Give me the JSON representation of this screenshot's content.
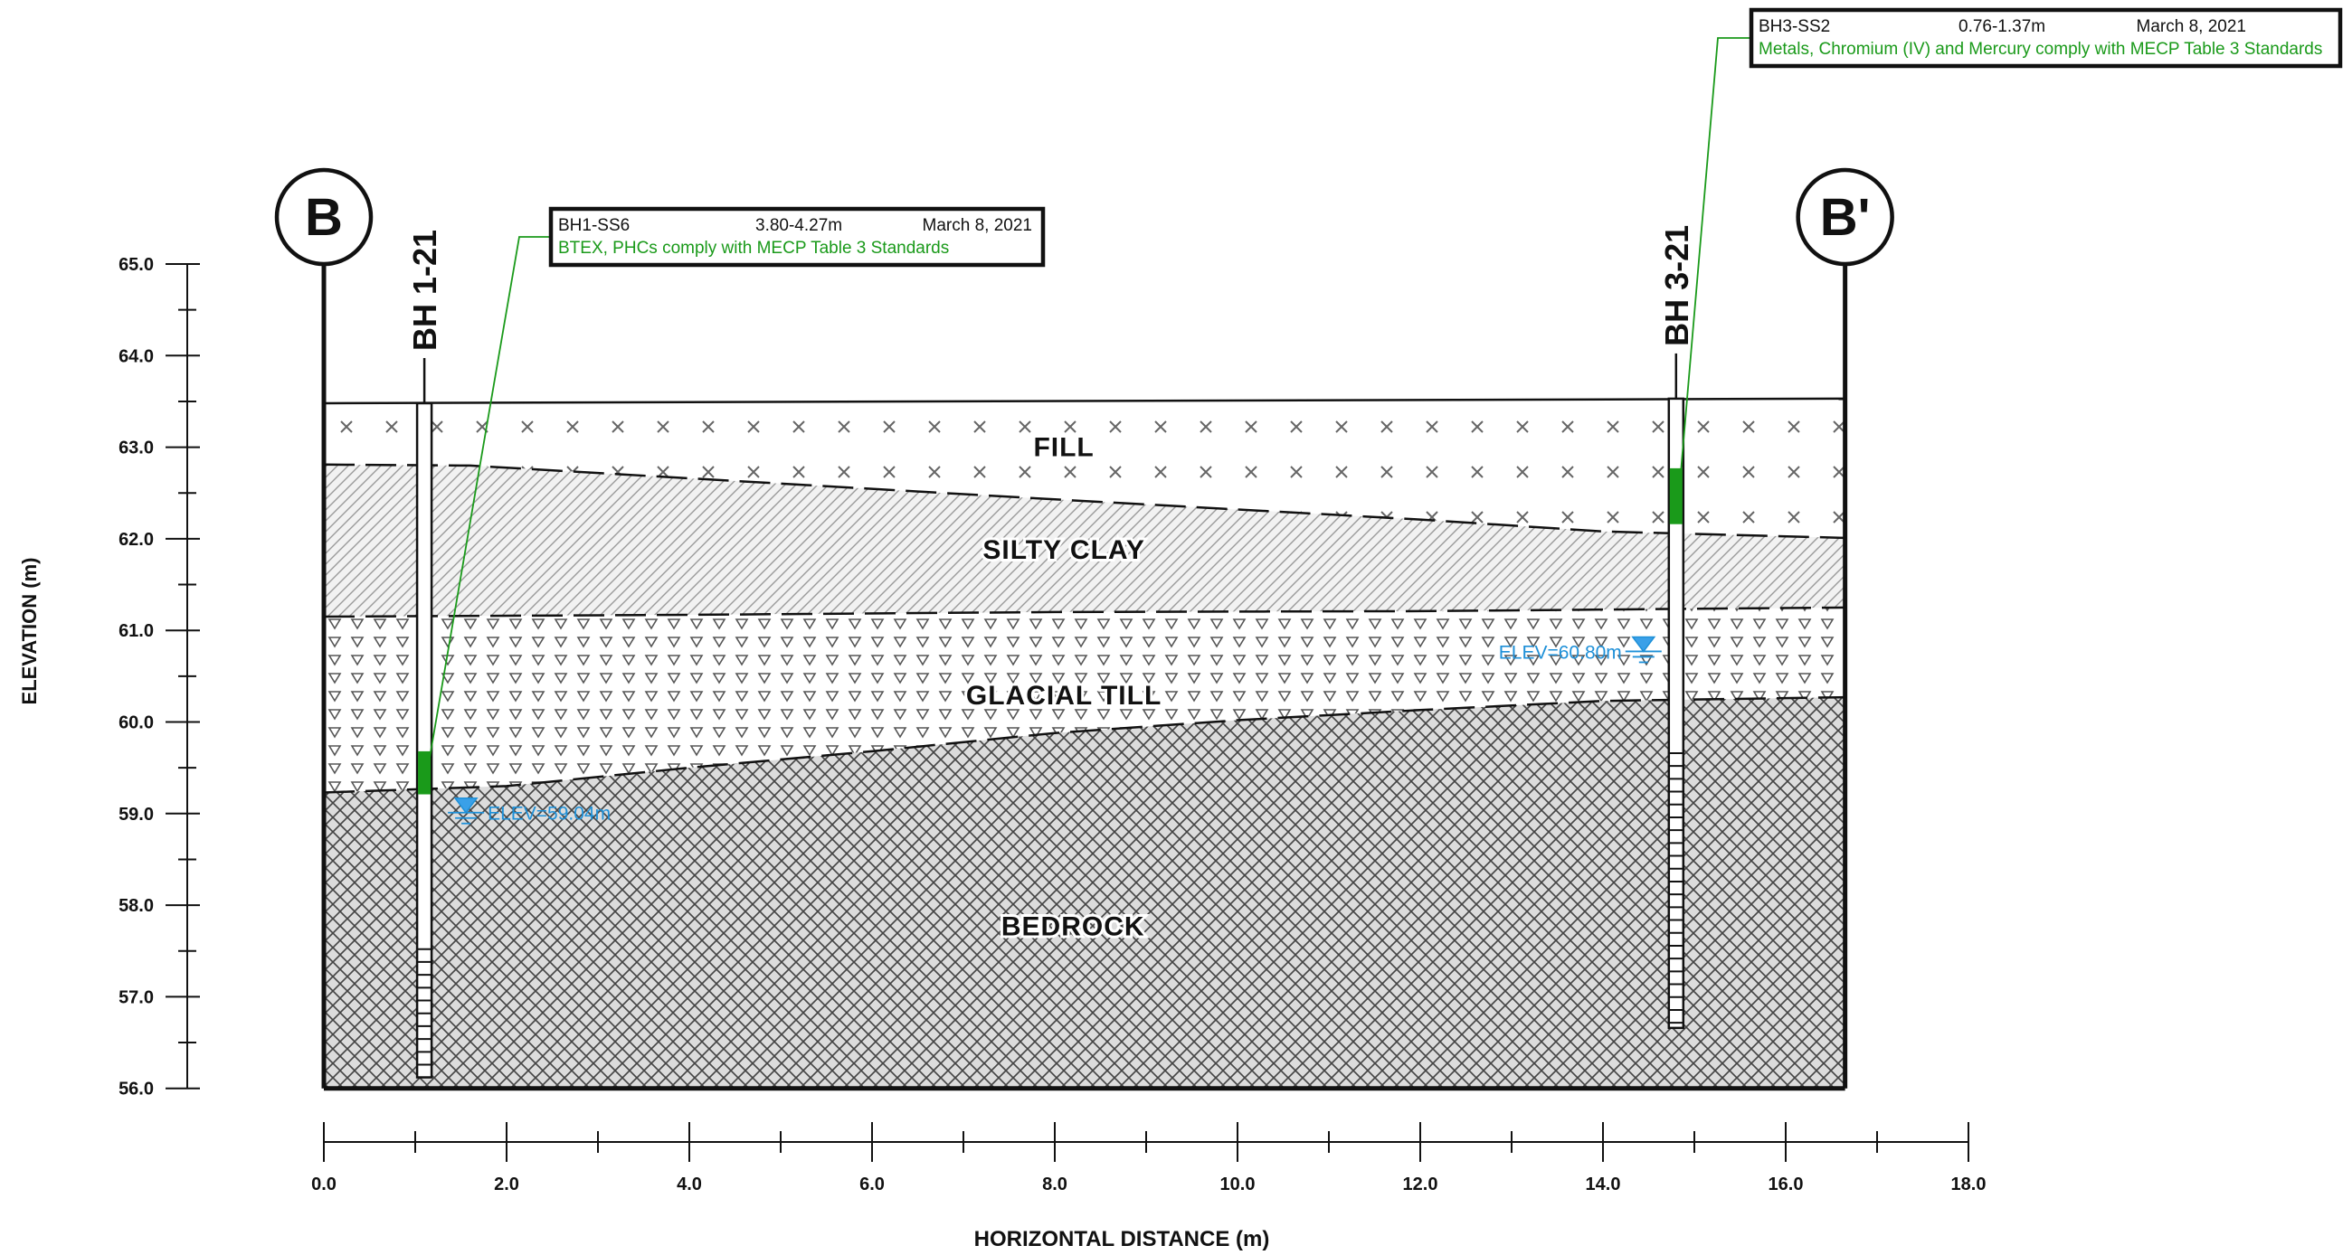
{
  "section": {
    "start_label": "B",
    "end_label": "B'",
    "start_distance_m": 0.0,
    "end_distance_m": 16.65
  },
  "axes": {
    "y_title": "ELEVATION (m)",
    "x_title": "HORIZONTAL DISTANCE (m)",
    "y_ticks": [
      "65.0",
      "64.0",
      "63.0",
      "62.0",
      "61.0",
      "60.0",
      "59.0",
      "58.0",
      "57.0",
      "56.0"
    ],
    "x_ticks": [
      "0.0",
      "2.0",
      "4.0",
      "6.0",
      "8.0",
      "10.0",
      "12.0",
      "14.0",
      "16.0",
      "18.0"
    ],
    "y_range": [
      56.0,
      65.0
    ],
    "x_range": [
      0.0,
      18.0
    ],
    "y_minor_step": 0.5,
    "x_minor_step": 1.0
  },
  "layers": [
    {
      "name": "FILL",
      "pattern": "cross"
    },
    {
      "name": "SILTY CLAY",
      "pattern": "hatch"
    },
    {
      "name": "GLACIAL TILL",
      "pattern": "triangles"
    },
    {
      "name": "BEDROCK",
      "pattern": "brick"
    }
  ],
  "profiles": {
    "ground_surface": [
      [
        0.0,
        63.48
      ],
      [
        16.65,
        63.53
      ]
    ],
    "fill_bottom": [
      [
        0.0,
        62.81
      ],
      [
        1.6,
        62.8
      ],
      [
        4.0,
        62.66
      ],
      [
        8.0,
        62.43
      ],
      [
        12.0,
        62.21
      ],
      [
        14.0,
        62.08
      ],
      [
        16.65,
        62.01
      ]
    ],
    "clay_bottom": [
      [
        0.0,
        61.15
      ],
      [
        4.0,
        61.17
      ],
      [
        8.0,
        61.2
      ],
      [
        12.0,
        61.21
      ],
      [
        16.65,
        61.25
      ]
    ],
    "till_bottom": [
      [
        0.0,
        59.23
      ],
      [
        2.0,
        59.3
      ],
      [
        4.0,
        59.5
      ],
      [
        6.0,
        59.68
      ],
      [
        8.0,
        59.88
      ],
      [
        10.0,
        60.02
      ],
      [
        12.0,
        60.13
      ],
      [
        14.0,
        60.23
      ],
      [
        16.65,
        60.27
      ]
    ]
  },
  "boreholes": [
    {
      "id": "BH 1-21",
      "x_m": 1.1,
      "top_elev": 63.48,
      "bottom_elev": 56.12,
      "screen_top_elev": 57.52,
      "sample_top_elev": 59.68,
      "sample_bottom_elev": 59.21,
      "water_level_label": "ELEV=59.04m",
      "water_level_elev": 59.04,
      "callout": {
        "sample": "BH1-SS6",
        "depth": "3.80-4.27m",
        "date": "March 8, 2021",
        "result": "BTEX, PHCs comply with MECP Table 3 Standards"
      }
    },
    {
      "id": "BH 3-21",
      "x_m": 14.8,
      "top_elev": 63.53,
      "bottom_elev": 56.66,
      "screen_top_elev": 59.66,
      "sample_top_elev": 62.77,
      "sample_bottom_elev": 62.16,
      "water_level_label": "ELEV=60.80m",
      "water_level_elev": 60.8,
      "callout": {
        "sample": "BH3-SS2",
        "depth": "0.76-1.37m",
        "date": "March 8, 2021",
        "result": "Metals, Chromium (IV) and Mercury comply with MECP Table 3 Standards"
      }
    }
  ],
  "colors": {
    "line": "#111111",
    "sample_fill": "#1a9a1a",
    "callout_text": "#1a9a1a",
    "water": "#1e90d8"
  }
}
